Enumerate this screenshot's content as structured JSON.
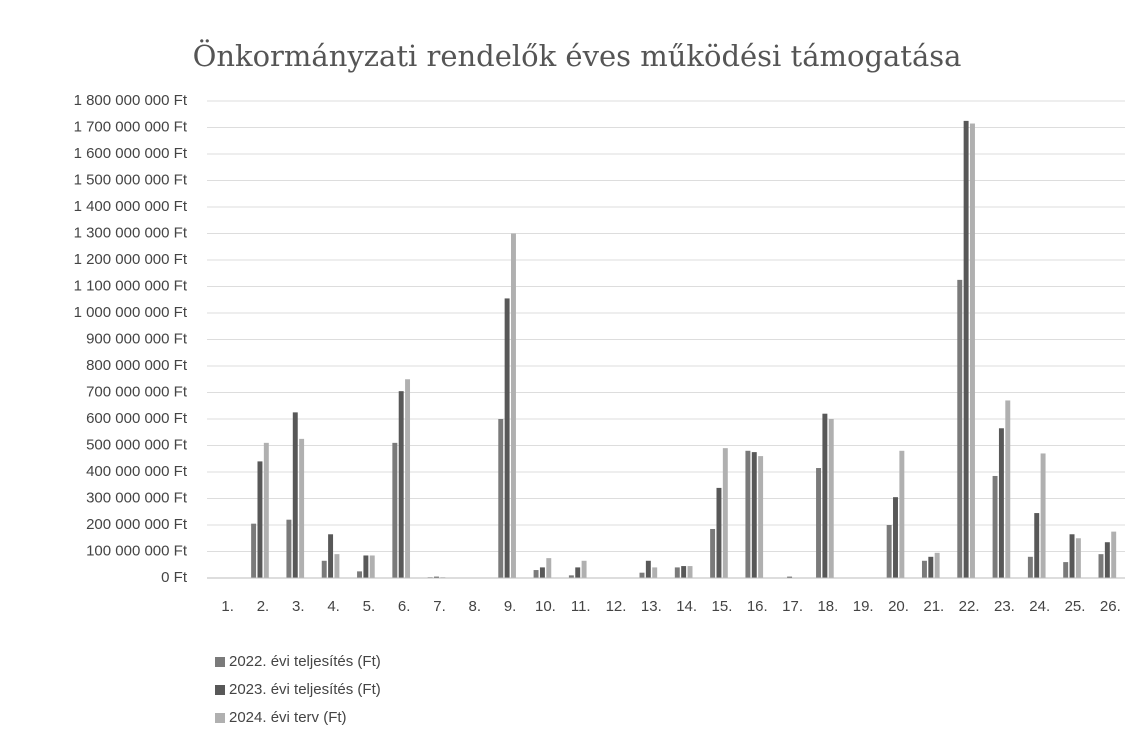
{
  "chart_data": {
    "type": "bar",
    "title": "Önkormányzati rendelők éves működési támogatása",
    "categories": [
      "1.",
      "2.",
      "3.",
      "4.",
      "5.",
      "6.",
      "7.",
      "8.",
      "9.",
      "10.",
      "11.",
      "12.",
      "13.",
      "14.",
      "15.",
      "16.",
      "17.",
      "18.",
      "19.",
      "20.",
      "21.",
      "22.",
      "23.",
      "24.",
      "25.",
      "26."
    ],
    "series": [
      {
        "name": "2022. évi teljesítés (Ft)",
        "color": "#7a7a7a",
        "values": [
          0,
          205000000,
          220000000,
          65000000,
          25000000,
          510000000,
          3000000,
          0,
          600000000,
          30000000,
          10000000,
          0,
          20000000,
          40000000,
          185000000,
          480000000,
          0,
          415000000,
          0,
          200000000,
          65000000,
          1125000000,
          385000000,
          80000000,
          60000000,
          90000000
        ]
      },
      {
        "name": "2023. évi teljesítés (Ft)",
        "color": "#585858",
        "values": [
          0,
          440000000,
          625000000,
          165000000,
          85000000,
          705000000,
          5000000,
          0,
          1055000000,
          40000000,
          40000000,
          0,
          65000000,
          45000000,
          340000000,
          475000000,
          5000000,
          620000000,
          0,
          305000000,
          80000000,
          1725000000,
          565000000,
          245000000,
          165000000,
          135000000
        ]
      },
      {
        "name": "2024. évi terv (Ft)",
        "color": "#b0b0b0",
        "values": [
          0,
          510000000,
          525000000,
          90000000,
          85000000,
          750000000,
          3000000,
          0,
          1300000000,
          75000000,
          65000000,
          0,
          40000000,
          45000000,
          490000000,
          460000000,
          0,
          600000000,
          0,
          480000000,
          95000000,
          1715000000,
          670000000,
          470000000,
          150000000,
          175000000
        ]
      }
    ],
    "ylim": [
      0,
      1800000000
    ],
    "yticks": [
      {
        "value": 0,
        "label": "0 Ft"
      },
      {
        "value": 100000000,
        "label": "100 000 000 Ft"
      },
      {
        "value": 200000000,
        "label": "200 000 000 Ft"
      },
      {
        "value": 300000000,
        "label": "300 000 000 Ft"
      },
      {
        "value": 400000000,
        "label": "400 000 000 Ft"
      },
      {
        "value": 500000000,
        "label": "500 000 000 Ft"
      },
      {
        "value": 600000000,
        "label": "600 000 000 Ft"
      },
      {
        "value": 700000000,
        "label": "700 000 000 Ft"
      },
      {
        "value": 800000000,
        "label": "800 000 000 Ft"
      },
      {
        "value": 900000000,
        "label": "900 000 000 Ft"
      },
      {
        "value": 1000000000,
        "label": "1 000 000 000 Ft"
      },
      {
        "value": 1100000000,
        "label": "1 100 000 000 Ft"
      },
      {
        "value": 1200000000,
        "label": "1 200 000 000 Ft"
      },
      {
        "value": 1300000000,
        "label": "1 300 000 000 Ft"
      },
      {
        "value": 1400000000,
        "label": "1 400 000 000 Ft"
      },
      {
        "value": 1500000000,
        "label": "1 500 000 000 Ft"
      },
      {
        "value": 1600000000,
        "label": "1 600 000 000 Ft"
      },
      {
        "value": 1700000000,
        "label": "1 700 000 000 Ft"
      },
      {
        "value": 1800000000,
        "label": "1 800 000 000 Ft"
      }
    ],
    "grid": true,
    "legend": "bottom-left"
  }
}
